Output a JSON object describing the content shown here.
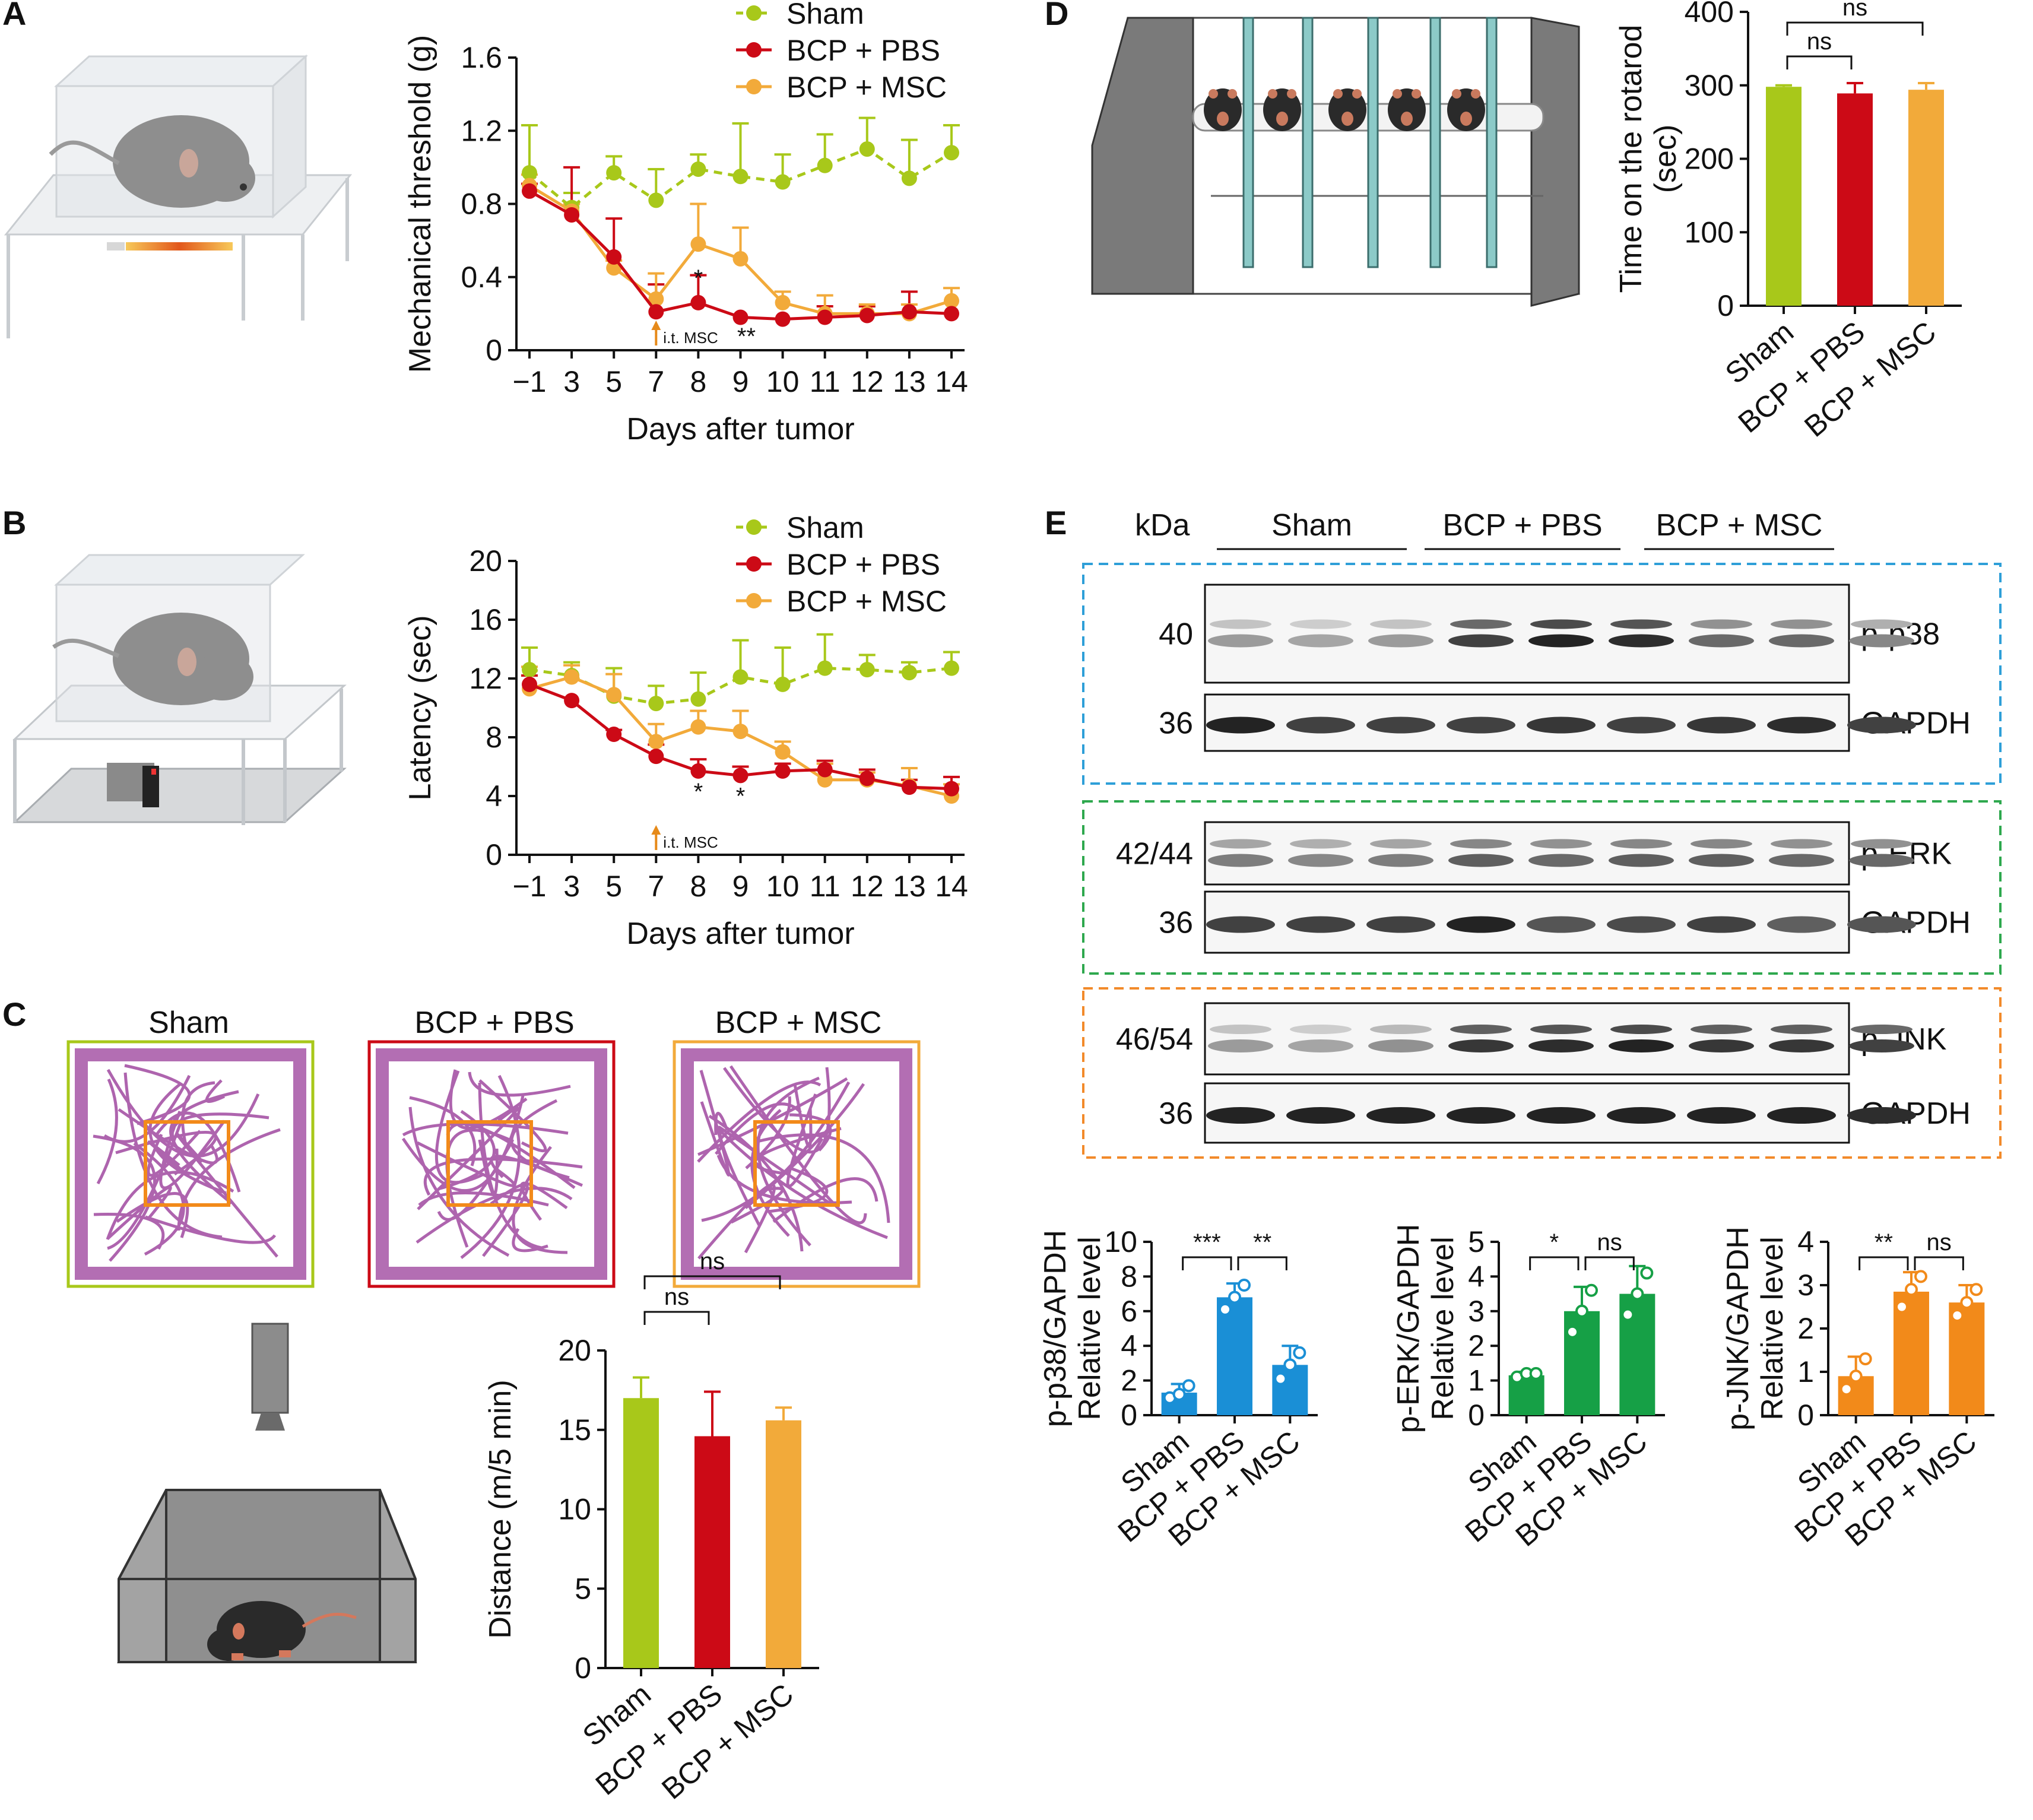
{
  "panel_letters": [
    "A",
    "B",
    "C",
    "D",
    "E"
  ],
  "colors": {
    "Sham": "#a8c81a",
    "BCP + PBS": "#cc0a16",
    "BCP + MSC": "#f2aa3a",
    "pp38": "#1a8fd6",
    "perk": "#16a046",
    "pjnk": "#f28a1a",
    "west_box_blue": "#2e9fd8",
    "west_box_green": "#2ea84e",
    "west_box_orange": "#f28a2a"
  },
  "annotation": "i.t. MSC",
  "chart_data": [
    {
      "panel": "A",
      "type": "line",
      "xlabel": "Days after tumor",
      "ylabel": "Mechanical threshold (g)",
      "x": [
        -1,
        3,
        5,
        7,
        8,
        9,
        10,
        11,
        12,
        13,
        14
      ],
      "x_tick_labels": [
        "−1",
        "3",
        "5",
        "7",
        "8",
        "9",
        "10",
        "11",
        "12",
        "13",
        "14"
      ],
      "ylim": [
        0,
        1.6
      ],
      "y_ticks": [
        "0",
        "0.4",
        "0.8",
        "1.2",
        "1.6"
      ],
      "series": [
        {
          "name": "Sham",
          "values": [
            0.97,
            0.78,
            0.97,
            0.82,
            0.99,
            0.95,
            0.92,
            1.01,
            1.1,
            0.94,
            1.08
          ],
          "errors": [
            0.26,
            0.08,
            0.09,
            0.17,
            0.08,
            0.29,
            0.15,
            0.17,
            0.17,
            0.21,
            0.15
          ],
          "style": "dashed"
        },
        {
          "name": "BCP + PBS",
          "values": [
            0.87,
            0.74,
            0.51,
            0.21,
            0.26,
            0.18,
            0.17,
            0.18,
            0.19,
            0.21,
            0.2
          ],
          "errors": [
            0.04,
            0.26,
            0.21,
            0.15,
            0.15,
            0.0,
            0.0,
            0.06,
            0.05,
            0.11,
            0.0
          ],
          "style": "solid"
        },
        {
          "name": "BCP + MSC",
          "values": [
            0.9,
            0.76,
            0.45,
            0.28,
            0.58,
            0.5,
            0.26,
            0.2,
            0.2,
            0.2,
            0.27
          ],
          "errors": [
            0.06,
            0.04,
            0.04,
            0.14,
            0.22,
            0.17,
            0.06,
            0.1,
            0.05,
            0.05,
            0.07
          ],
          "style": "solid"
        }
      ],
      "significance": [
        {
          "x": 8,
          "label": "*"
        },
        {
          "x": 9,
          "label": "**"
        }
      ],
      "arrow_at": 7
    },
    {
      "panel": "B",
      "type": "line",
      "xlabel": "Days after tumor",
      "ylabel": "Latency (sec)",
      "x": [
        -1,
        3,
        5,
        7,
        8,
        9,
        10,
        11,
        12,
        13,
        14
      ],
      "x_tick_labels": [
        "−1",
        "3",
        "5",
        "7",
        "8",
        "9",
        "10",
        "11",
        "12",
        "13",
        "14"
      ],
      "ylim": [
        0,
        20
      ],
      "y_ticks": [
        "0",
        "4",
        "8",
        "12",
        "16",
        "20"
      ],
      "series": [
        {
          "name": "Sham",
          "values": [
            12.6,
            12.2,
            10.8,
            10.3,
            10.6,
            12.1,
            11.6,
            12.7,
            12.6,
            12.4,
            12.7
          ],
          "errors": [
            1.5,
            0.9,
            1.9,
            1.2,
            1.8,
            2.5,
            2.5,
            2.3,
            1.0,
            0.7,
            1.1
          ],
          "style": "dashed"
        },
        {
          "name": "BCP + PBS",
          "values": [
            11.6,
            10.5,
            8.2,
            6.7,
            5.7,
            5.4,
            5.7,
            5.8,
            5.2,
            4.6,
            4.5
          ],
          "errors": [
            0.6,
            0.0,
            0.3,
            0.8,
            0.8,
            0.6,
            0.5,
            0.6,
            0.6,
            0.5,
            0.8
          ],
          "style": "solid"
        },
        {
          "name": "BCP + MSC",
          "values": [
            11.3,
            12.1,
            10.9,
            7.7,
            8.7,
            8.4,
            7.0,
            5.1,
            5.1,
            4.7,
            4.0
          ],
          "errors": [
            1.5,
            0.8,
            1.4,
            1.2,
            1.1,
            1.4,
            0.7,
            1.1,
            0.5,
            1.2,
            0.8
          ],
          "style": "solid"
        }
      ],
      "significance": [
        {
          "x": 8,
          "label": "*"
        },
        {
          "x": 9,
          "label": "*"
        }
      ],
      "arrow_at": 7
    },
    {
      "panel": "C",
      "type": "bar",
      "categories": [
        "Sham",
        "BCP + PBS",
        "BCP + MSC"
      ],
      "values": [
        17.0,
        14.6,
        15.6
      ],
      "errors": [
        1.3,
        2.8,
        0.8
      ],
      "ylabel": "Distance (m/5 min)",
      "ylim": [
        0,
        20
      ],
      "y_ticks": [
        "0",
        "5",
        "10",
        "15",
        "20"
      ],
      "comparisons": [
        {
          "from": 0,
          "to": 1,
          "label": "ns"
        },
        {
          "from": 0,
          "to": 2,
          "label": "ns"
        }
      ],
      "track_titles": [
        "Sham",
        "BCP + PBS",
        "BCP + MSC"
      ]
    },
    {
      "panel": "D",
      "type": "bar",
      "categories": [
        "Sham",
        "BCP + PBS",
        "BCP + MSC"
      ],
      "values": [
        298,
        289,
        294
      ],
      "errors": [
        2,
        14,
        9
      ],
      "ylabel": "Time on the rotarod (sec)",
      "ylabel_lines": [
        "Time on the rotarod",
        "(sec)"
      ],
      "ylim": [
        0,
        400
      ],
      "y_ticks": [
        "0",
        "100",
        "200",
        "300",
        "400"
      ],
      "comparisons": [
        {
          "from": 0,
          "to": 1,
          "label": "ns"
        },
        {
          "from": 0,
          "to": 2,
          "label": "ns"
        }
      ]
    },
    {
      "panel": "E-p38",
      "type": "bar",
      "categories": [
        "Sham",
        "BCP + PBS",
        "BCP + MSC"
      ],
      "values": [
        1.3,
        6.8,
        2.9
      ],
      "errors": [
        0.5,
        0.8,
        1.1
      ],
      "points": [
        [
          1.0,
          1.2,
          1.7
        ],
        [
          6.1,
          6.8,
          7.5
        ],
        [
          2.1,
          2.9,
          3.6
        ]
      ],
      "ylabel_lines": [
        "p-p38/GAPDH",
        "Relative level"
      ],
      "ylim": [
        0,
        10
      ],
      "y_ticks": [
        "0",
        "2",
        "4",
        "6",
        "8",
        "10"
      ],
      "comparisons": [
        {
          "from": 0,
          "to": 1,
          "label": "***"
        },
        {
          "from": 1,
          "to": 2,
          "label": "**"
        }
      ]
    },
    {
      "panel": "E-ERK",
      "type": "bar",
      "categories": [
        "Sham",
        "BCP + PBS",
        "BCP + MSC"
      ],
      "values": [
        1.15,
        3.0,
        3.5
      ],
      "errors": [
        0.1,
        0.7,
        0.8
      ],
      "points": [
        [
          1.1,
          1.2,
          1.2
        ],
        [
          2.4,
          3.0,
          3.6
        ],
        [
          2.9,
          3.5,
          4.1
        ]
      ],
      "ylabel_lines": [
        "p-ERK/GAPDH",
        "Relative level"
      ],
      "ylim": [
        0,
        5
      ],
      "y_ticks": [
        "0",
        "1",
        "2",
        "3",
        "4",
        "5"
      ],
      "comparisons": [
        {
          "from": 0,
          "to": 1,
          "label": "*"
        },
        {
          "from": 1,
          "to": 2,
          "label": "ns"
        }
      ]
    },
    {
      "panel": "E-JNK",
      "type": "bar",
      "categories": [
        "Sham",
        "BCP + PBS",
        "BCP + MSC"
      ],
      "values": [
        0.9,
        2.85,
        2.6
      ],
      "errors": [
        0.45,
        0.45,
        0.4
      ],
      "points": [
        [
          0.6,
          0.9,
          1.3
        ],
        [
          2.5,
          2.9,
          3.2
        ],
        [
          2.3,
          2.6,
          2.9
        ]
      ],
      "ylabel_lines": [
        "p-JNK/GAPDH",
        "Relative level"
      ],
      "ylim": [
        0,
        4
      ],
      "y_ticks": [
        "0",
        "1",
        "2",
        "3",
        "4"
      ],
      "comparisons": [
        {
          "from": 0,
          "to": 1,
          "label": "**"
        },
        {
          "from": 1,
          "to": 2,
          "label": "ns"
        }
      ]
    }
  ],
  "western": {
    "kda_label": "kDa",
    "groups": [
      "Sham",
      "BCP + PBS",
      "BCP + MSC"
    ],
    "blots": [
      {
        "id": "p38",
        "kda": "40",
        "label": "p-p38",
        "intensity": [
          0.35,
          0.3,
          0.35,
          0.8,
          0.95,
          0.9,
          0.6,
          0.6,
          0.45
        ],
        "bands": 2
      },
      {
        "id": "gapdh1",
        "kda": "36",
        "label": "GAPDH",
        "intensity": [
          0.95,
          0.8,
          0.8,
          0.8,
          0.85,
          0.8,
          0.85,
          0.9,
          0.8
        ],
        "bands": 1
      },
      {
        "id": "erk",
        "kda": "42/44",
        "label": "p-ERK",
        "intensity": [
          0.5,
          0.45,
          0.5,
          0.65,
          0.6,
          0.65,
          0.65,
          0.6,
          0.6
        ],
        "bands": 2
      },
      {
        "id": "gapdh2",
        "kda": "36",
        "label": "GAPDH",
        "intensity": [
          0.8,
          0.8,
          0.8,
          0.95,
          0.7,
          0.75,
          0.8,
          0.65,
          0.7
        ],
        "bands": 1
      },
      {
        "id": "jnk",
        "kda": "46/54",
        "label": "p-JNK",
        "intensity": [
          0.35,
          0.3,
          0.4,
          0.85,
          0.9,
          0.95,
          0.85,
          0.85,
          0.8
        ],
        "bands": 2
      },
      {
        "id": "gapdh3",
        "kda": "36",
        "label": "GAPDH",
        "intensity": [
          0.95,
          0.95,
          0.95,
          0.95,
          0.95,
          0.95,
          0.95,
          0.95,
          0.9
        ],
        "bands": 1
      }
    ]
  }
}
